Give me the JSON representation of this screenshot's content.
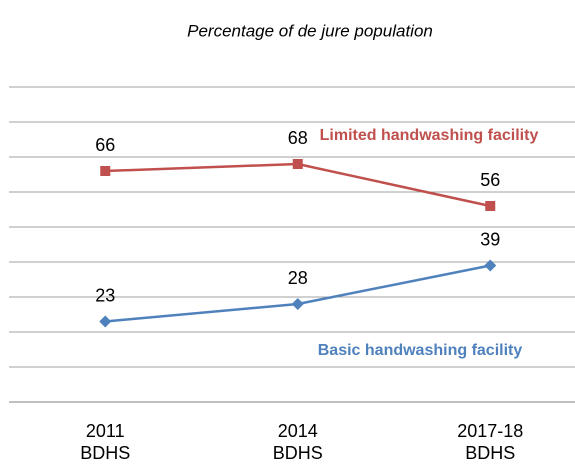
{
  "chart_data": {
    "type": "line",
    "title": "Percentage of de jure population",
    "categories": [
      "2011 BDHS",
      "2014 BDHS",
      "2017-18 BDHS"
    ],
    "series": [
      {
        "name": "Limited handwashing facility",
        "color": "#c0504d",
        "values": [
          66,
          68,
          56
        ]
      },
      {
        "name": "Basic handwashing facility",
        "color": "#4f81bd",
        "values": [
          23,
          28,
          39
        ]
      }
    ],
    "ylim": [
      0,
      90
    ],
    "yticks": [
      0,
      10,
      20,
      30,
      40,
      50,
      60,
      70,
      80,
      90
    ],
    "grid": true
  }
}
